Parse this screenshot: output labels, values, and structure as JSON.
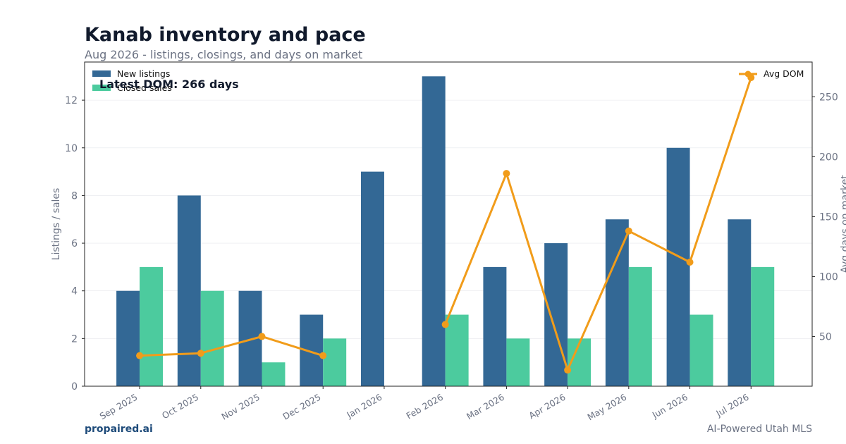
{
  "header": {
    "title": "Kanab inventory and pace",
    "subtitle": "Aug 2026 - listings, closings, and days on market"
  },
  "footer": {
    "brand": "propaired.ai",
    "tagline": "AI-Powered Utah MLS"
  },
  "colors": {
    "new_listings": "#336895",
    "closed_sales": "#4ccb9e",
    "avg_dom": "#f19c1a",
    "axis_text": "#6b7283"
  },
  "chart_data": {
    "type": "bar",
    "categories": [
      "Sep 2025",
      "Oct 2025",
      "Nov 2025",
      "Dec 2025",
      "Jan 2026",
      "Feb 2026",
      "Mar 2026",
      "Apr 2026",
      "May 2026",
      "Jun 2026",
      "Jul 2026"
    ],
    "series": [
      {
        "name": "New listings",
        "type": "bar",
        "axis": "left",
        "values": [
          4,
          8,
          4,
          3,
          9,
          13,
          5,
          6,
          7,
          10,
          7
        ]
      },
      {
        "name": "Closed sales",
        "type": "bar",
        "axis": "left",
        "values": [
          5,
          4,
          1,
          2,
          0,
          3,
          2,
          2,
          5,
          3,
          5
        ]
      },
      {
        "name": "Avg DOM",
        "type": "line",
        "axis": "right",
        "values": [
          34,
          36,
          50,
          34,
          null,
          60,
          186,
          22,
          138,
          112,
          266
        ]
      }
    ],
    "ylabel": "Listings / sales",
    "y2label": "Avg days on market",
    "ylim": [
      0,
      13.6
    ],
    "y2lim": [
      8.5,
      279
    ],
    "yticks": [
      0,
      2,
      4,
      6,
      8,
      10,
      12
    ],
    "y2ticks": [
      50,
      100,
      150,
      200,
      250
    ],
    "annotation": "Latest DOM: 266 days",
    "grid": true,
    "legend_left": "top-left",
    "legend_right": "top-right"
  }
}
